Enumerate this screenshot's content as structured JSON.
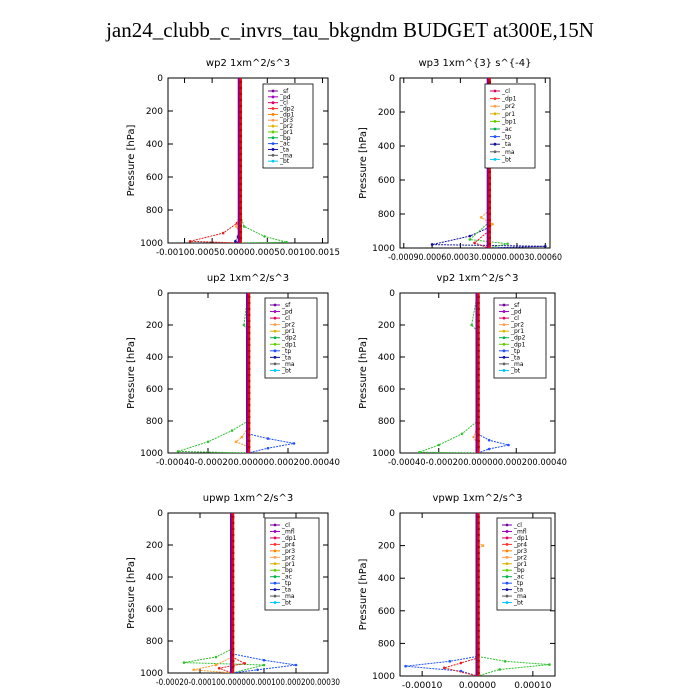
{
  "figure_title": "jan24_clubb_c_invrs_tau_bkgndm  BUDGET at300E,15N",
  "chart_data": [
    {
      "type": "line",
      "title": "wp2   1xm^2/s^3",
      "ylabel": "Pressure [hPa]",
      "xlim": [
        -0.0013,
        0.0016
      ],
      "ylim": [
        1000,
        0
      ],
      "xticks": [
        -0.001,
        -0.0005,
        0.0,
        0.0005,
        0.001,
        0.0015
      ],
      "xtick_text": "-0.00100.00050.00000.00050.00100.0015",
      "yticks": [
        0,
        200,
        400,
        600,
        800,
        1000
      ],
      "zero_line": 0.0,
      "legend": [
        "_sf",
        "_pd",
        "_cl",
        "_dp2",
        "_dp1",
        "_pr3",
        "_pr2",
        "_pr1",
        "_bp",
        "_ac",
        "_ta",
        "_ma",
        "_bt"
      ],
      "legend_colors": [
        "#7a00a0",
        "#a000c0",
        "#e00060",
        "#ff3030",
        "#ff7f00",
        "#ff9f50",
        "#e0b000",
        "#60d000",
        "#00b050",
        "#2050ff",
        "#1010a0",
        "#606060",
        "#00c8ff"
      ],
      "series": [
        {
          "color": "#e02020",
          "points": [
            [
              0,
              0
            ],
            [
              0,
              600
            ],
            [
              0,
              840
            ],
            [
              -5e-05,
              880
            ],
            [
              -0.0003,
              940
            ],
            [
              -0.0009,
              990
            ],
            [
              0,
              1000
            ]
          ]
        },
        {
          "color": "#30c030",
          "points": [
            [
              0,
              0
            ],
            [
              0,
              800
            ],
            [
              2e-05,
              840
            ],
            [
              8e-05,
              900
            ],
            [
              0.00045,
              960
            ],
            [
              0.00085,
              995
            ],
            [
              0,
              1000
            ]
          ]
        },
        {
          "color": "#ff9f30",
          "points": [
            [
              0,
              0
            ],
            [
              0,
              820
            ],
            [
              -2e-05,
              860
            ],
            [
              -6e-05,
              900
            ],
            [
              0,
              940
            ],
            [
              0,
              1000
            ]
          ]
        },
        {
          "color": "#1010a0",
          "points": [
            [
              0,
              0
            ],
            [
              0,
              900
            ],
            [
              -3e-05,
              960
            ],
            [
              -8e-05,
              990
            ],
            [
              0,
              1000
            ]
          ]
        }
      ]
    },
    {
      "type": "line",
      "title": "wp3   1xm^{3} s^{-4}",
      "ylabel": "Pressure [hPa]",
      "xlim": [
        -0.00094,
        0.00065
      ],
      "ylim": [
        1000,
        0
      ],
      "xticks": [
        -0.0009,
        -0.0006,
        -0.0003,
        0.0,
        0.0003,
        0.0006
      ],
      "xtick_text": "-0.00090.00060.00030.00000.00030.00060",
      "yticks": [
        0,
        200,
        400,
        600,
        800,
        1000
      ],
      "zero_line": 0.0,
      "legend": [
        "_cl",
        "_dp1",
        "_pr2",
        "_pr1",
        "_bp1",
        "_ac",
        "_tp",
        "_ta",
        "_ma",
        "_bt"
      ],
      "legend_colors": [
        "#e00060",
        "#ff3030",
        "#ff9f50",
        "#e0b000",
        "#60d000",
        "#00b050",
        "#2050ff",
        "#1010a0",
        "#606060",
        "#00c8ff"
      ],
      "series": [
        {
          "color": "#1010a0",
          "points": [
            [
              0,
              0
            ],
            [
              0,
              130
            ],
            [
              2e-05,
              150
            ],
            [
              2e-05,
              180
            ],
            [
              0,
              200
            ],
            [
              0,
              880
            ],
            [
              -0.0002,
              930
            ],
            [
              -0.0006,
              980
            ],
            [
              0.0006,
              990
            ],
            [
              0,
              1000
            ]
          ]
        },
        {
          "color": "#30c030",
          "points": [
            [
              0,
              0
            ],
            [
              0,
              850
            ],
            [
              -0.0002,
              950
            ],
            [
              0.0002,
              975
            ],
            [
              0,
              1000
            ]
          ]
        },
        {
          "color": "#ff9f30",
          "points": [
            [
              0,
              0
            ],
            [
              0,
              780
            ],
            [
              -8e-05,
              820
            ],
            [
              4e-05,
              860
            ],
            [
              0,
              900
            ],
            [
              0,
              1000
            ]
          ]
        },
        {
          "color": "#e02020",
          "points": [
            [
              0,
              0
            ],
            [
              0,
              900
            ],
            [
              -0.00015,
              970
            ],
            [
              0,
              1000
            ]
          ]
        }
      ]
    },
    {
      "type": "line",
      "title": "up2   1xm^2/s^3",
      "ylabel": "Pressure [hPa]",
      "xlim": [
        -0.0004,
        0.0004
      ],
      "ylim": [
        1000,
        0
      ],
      "xticks": [
        -0.0004,
        -0.0002,
        0.0,
        0.0002,
        0.0004
      ],
      "xtick_text": "-0.00040-0.000200.000000.000200.00040",
      "yticks": [
        0,
        200,
        400,
        600,
        800,
        1000
      ],
      "zero_line": 0.0,
      "legend": [
        "_sf",
        "_pd",
        "_cl",
        "_pr2",
        "_pr1",
        "_dp2",
        "_dp1",
        "_tp",
        "_ta",
        "_ma",
        "_bt"
      ],
      "legend_colors": [
        "#7a00a0",
        "#a000c0",
        "#e00060",
        "#ff9f50",
        "#e0b000",
        "#00b050",
        "#60d000",
        "#2050ff",
        "#1010a0",
        "#606060",
        "#00c8ff"
      ],
      "series": [
        {
          "color": "#30c030",
          "points": [
            [
              0,
              0
            ],
            [
              -2e-05,
              200
            ],
            [
              0,
              240
            ],
            [
              0,
              800
            ],
            [
              -8e-05,
              860
            ],
            [
              -0.0002,
              930
            ],
            [
              -0.00035,
              990
            ],
            [
              0,
              1000
            ]
          ]
        },
        {
          "color": "#2050ff",
          "points": [
            [
              0,
              0
            ],
            [
              0,
              880
            ],
            [
              0.0001,
              910
            ],
            [
              0.00023,
              940
            ],
            [
              0.0001,
              970
            ],
            [
              0,
              1000
            ]
          ]
        },
        {
          "color": "#ff9f30",
          "points": [
            [
              0,
              0
            ],
            [
              0,
              840
            ],
            [
              -3e-05,
              900
            ],
            [
              -6e-05,
              930
            ],
            [
              0,
              960
            ],
            [
              0,
              1000
            ]
          ]
        }
      ]
    },
    {
      "type": "line",
      "title": "vp2   1xm^2/s^3",
      "ylabel": "Pressure [hPa]",
      "xlim": [
        -0.0004,
        0.0004
      ],
      "ylim": [
        1000,
        0
      ],
      "xticks": [
        -0.0004,
        -0.0002,
        0.0,
        0.0002,
        0.0004
      ],
      "xtick_text": "-0.00040-0.000200.000000.000200.00040",
      "yticks": [
        0,
        200,
        400,
        600,
        800,
        1000
      ],
      "zero_line": 0.0,
      "legend": [
        "_sf",
        "_pd",
        "_cl",
        "_pr2",
        "_pr1",
        "_dp2",
        "_dp1",
        "_tp",
        "_ta",
        "_ma",
        "_bt"
      ],
      "legend_colors": [
        "#7a00a0",
        "#a000c0",
        "#e00060",
        "#ff9f50",
        "#e0b000",
        "#00b050",
        "#60d000",
        "#2050ff",
        "#1010a0",
        "#606060",
        "#00c8ff"
      ],
      "series": [
        {
          "color": "#30c030",
          "points": [
            [
              0,
              0
            ],
            [
              -3e-05,
              200
            ],
            [
              0,
              240
            ],
            [
              0,
              800
            ],
            [
              -8e-05,
              880
            ],
            [
              -0.0002,
              950
            ],
            [
              -0.0003,
              995
            ],
            [
              0,
              1000
            ]
          ]
        },
        {
          "color": "#2050ff",
          "points": [
            [
              0,
              0
            ],
            [
              0,
              880
            ],
            [
              6e-05,
              920
            ],
            [
              0.00016,
              950
            ],
            [
              6e-05,
              975
            ],
            [
              0,
              1000
            ]
          ]
        },
        {
          "color": "#ff9f30",
          "points": [
            [
              0,
              0
            ],
            [
              0,
              830
            ],
            [
              -2e-05,
              900
            ],
            [
              0,
              950
            ],
            [
              0,
              1000
            ]
          ]
        }
      ]
    },
    {
      "type": "line",
      "title": "upwp   1xm^2/s^3",
      "ylabel": "Pressure [hPa]",
      "xlim": [
        -0.0002,
        0.0003
      ],
      "ylim": [
        1000,
        0
      ],
      "xticks": [
        -0.0002,
        -0.0001,
        0.0,
        0.0001,
        0.0002,
        0.0003
      ],
      "xtick_text": "-0.00020-0.000100.000000.000100.000200.00030",
      "yticks": [
        0,
        200,
        400,
        600,
        800,
        1000
      ],
      "zero_line": 0.0,
      "legend": [
        "_cl",
        "_mfl",
        "_dp1",
        "_pr4",
        "_pr3",
        "_pr2",
        "_pr1",
        "_bp",
        "_ac",
        "_tp",
        "_ta",
        "_ma",
        "_bt"
      ],
      "legend_colors": [
        "#7a00a0",
        "#a000c0",
        "#e00060",
        "#ff3030",
        "#ff7f00",
        "#ff9f50",
        "#e0b000",
        "#60d000",
        "#00b050",
        "#2050ff",
        "#1010a0",
        "#606060",
        "#00c8ff"
      ],
      "series": [
        {
          "color": "#30c030",
          "points": [
            [
              0,
              0
            ],
            [
              0,
              850
            ],
            [
              -5e-05,
              900
            ],
            [
              -0.00015,
              935
            ],
            [
              0.0001,
              950
            ],
            [
              0,
              1000
            ]
          ]
        },
        {
          "color": "#2050ff",
          "points": [
            [
              0,
              0
            ],
            [
              0,
              880
            ],
            [
              0.0001,
              920
            ],
            [
              0.0002,
              950
            ],
            [
              8e-05,
              980
            ],
            [
              0,
              1000
            ]
          ]
        },
        {
          "color": "#ff9f30",
          "points": [
            [
              0,
              0
            ],
            [
              0,
              900
            ],
            [
              -5e-05,
              950
            ],
            [
              -0.00012,
              980
            ],
            [
              0,
              1000
            ]
          ]
        },
        {
          "color": "#e02020",
          "points": [
            [
              0,
              0
            ],
            [
              0,
              900
            ],
            [
              4e-05,
              940
            ],
            [
              -4e-05,
              970
            ],
            [
              0,
              1000
            ]
          ]
        }
      ]
    },
    {
      "type": "line",
      "title": "vpwp   1xm^2/s^3",
      "ylabel": "Pressure [hPa]",
      "xlim": [
        -0.00014,
        0.00014
      ],
      "ylim": [
        1000,
        0
      ],
      "xticks": [
        -0.0001,
        0.0,
        0.0001
      ],
      "xtick_text": "",
      "xtick_labels": [
        "-0.00010",
        "0.00000",
        "0.00010"
      ],
      "yticks": [
        0,
        200,
        400,
        600,
        800,
        1000
      ],
      "zero_line": 0.0,
      "legend": [
        "_cl",
        "_mfl",
        "_dp1",
        "_pr4",
        "_pr3",
        "_pr2",
        "_pr1",
        "_bp",
        "_ac",
        "_tp",
        "_ta",
        "_ma",
        "_bt"
      ],
      "legend_colors": [
        "#7a00a0",
        "#a000c0",
        "#e00060",
        "#ff3030",
        "#ff7f00",
        "#ff9f50",
        "#e0b000",
        "#60d000",
        "#00b050",
        "#2050ff",
        "#1010a0",
        "#606060",
        "#00c8ff"
      ],
      "series": [
        {
          "color": "#2050ff",
          "points": [
            [
              0,
              0
            ],
            [
              0,
              880
            ],
            [
              -5e-05,
              910
            ],
            [
              -0.00013,
              940
            ],
            [
              -3e-05,
              970
            ],
            [
              0,
              1000
            ]
          ]
        },
        {
          "color": "#30c030",
          "points": [
            [
              0,
              0
            ],
            [
              0,
              880
            ],
            [
              5e-05,
              910
            ],
            [
              0.00013,
              930
            ],
            [
              4e-05,
              960
            ],
            [
              0,
              1000
            ]
          ]
        },
        {
          "color": "#e02020",
          "points": [
            [
              0,
              0
            ],
            [
              0,
              890
            ],
            [
              -3e-05,
              920
            ],
            [
              -6e-05,
              950
            ],
            [
              0,
              1000
            ]
          ]
        },
        {
          "color": "#ff9f30",
          "points": [
            [
              0,
              0
            ],
            [
              0,
              180
            ],
            [
              1e-05,
              200
            ],
            [
              0,
              220
            ],
            [
              0,
              1000
            ]
          ]
        }
      ]
    }
  ]
}
